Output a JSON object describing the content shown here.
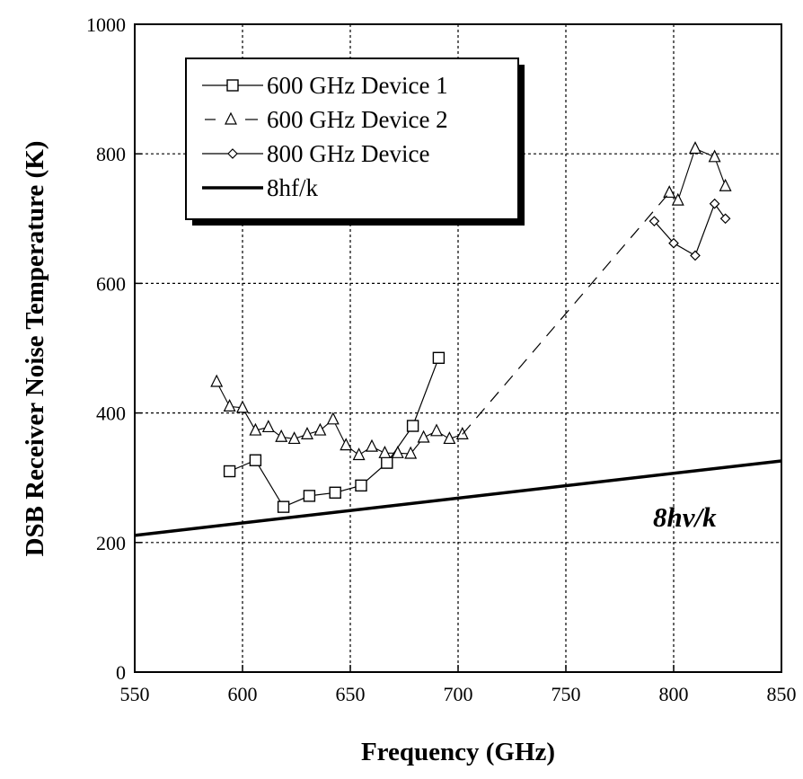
{
  "chart_data": {
    "type": "line",
    "xlabel": "Frequency (GHz)",
    "ylabel": "DSB Receiver Noise Temperature (K)",
    "xlim": [
      550,
      850
    ],
    "ylim": [
      0,
      1000
    ],
    "x_ticks": [
      550,
      600,
      650,
      700,
      750,
      800,
      850
    ],
    "y_ticks": [
      0,
      200,
      400,
      600,
      800,
      1000
    ],
    "grid": true,
    "legend_position": "top-left",
    "series": [
      {
        "name": "600 GHz Device 1",
        "marker": "square",
        "line": "solid",
        "x": [
          594,
          606,
          619,
          631,
          643,
          655,
          667,
          679,
          691
        ],
        "y": [
          310,
          327,
          255,
          272,
          277,
          288,
          323,
          380,
          485
        ]
      },
      {
        "name": "600 GHz Device 2",
        "marker": "triangle",
        "line": "dashed",
        "x": [
          588,
          594,
          600,
          606,
          612,
          618,
          624,
          630,
          636,
          642,
          648,
          654,
          660,
          666,
          672,
          678,
          684,
          690,
          696,
          702,
          798,
          802,
          810,
          819,
          824
        ],
        "y": [
          448,
          410,
          408,
          373,
          378,
          363,
          360,
          367,
          373,
          390,
          350,
          335,
          348,
          338,
          338,
          337,
          362,
          372,
          360,
          367,
          740,
          728,
          808,
          795,
          750
        ]
      },
      {
        "name": "800 GHz Device",
        "marker": "diamond",
        "line": "solid",
        "x": [
          791,
          800,
          810,
          819,
          824
        ],
        "y": [
          696,
          662,
          643,
          723,
          700
        ]
      },
      {
        "name": "8hf/k",
        "marker": "none",
        "line": "thick-solid",
        "x": [
          550,
          850
        ],
        "y": [
          211,
          326
        ]
      }
    ],
    "dashed_connector": {
      "from": [
        702,
        367
      ],
      "to": [
        798,
        740
      ]
    },
    "annotation": {
      "text": "8hν/k",
      "x": 778,
      "y": 237
    }
  }
}
